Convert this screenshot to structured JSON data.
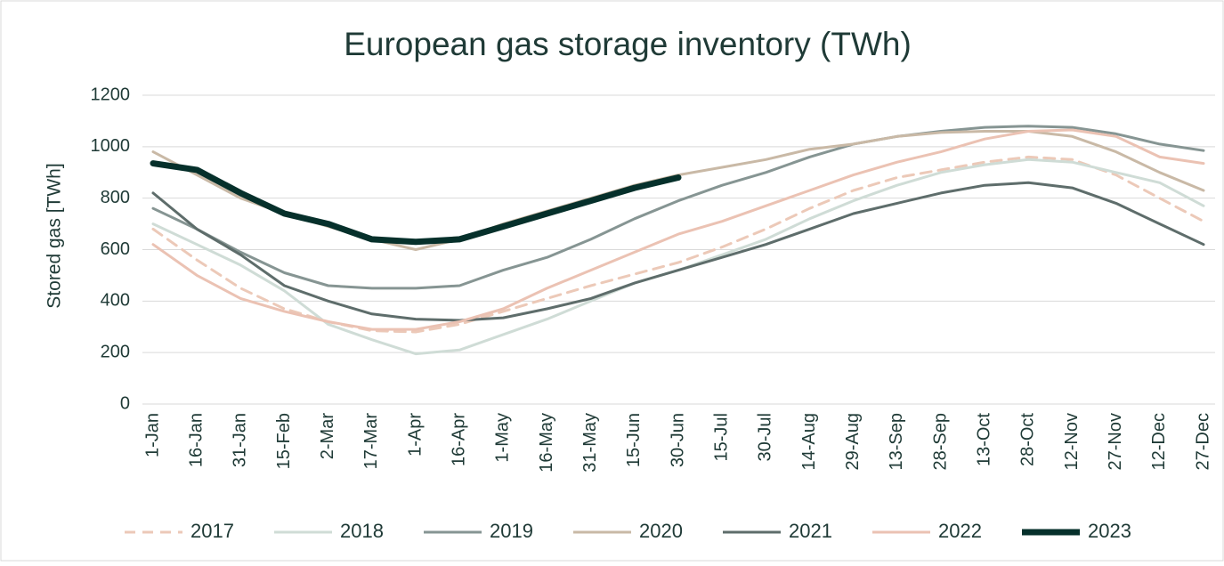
{
  "chart_data": {
    "type": "line",
    "title": "European gas storage inventory (TWh)",
    "y_label": "Stored gas [TWh]",
    "categories": [
      "1-Jan",
      "16-Jan",
      "31-Jan",
      "15-Feb",
      "2-Mar",
      "17-Mar",
      "1-Apr",
      "16-Apr",
      "1-May",
      "16-May",
      "31-May",
      "15-Jun",
      "30-Jun",
      "15-Jul",
      "30-Jul",
      "14-Aug",
      "29-Aug",
      "13-Sep",
      "28-Sep",
      "13-Oct",
      "28-Oct",
      "12-Nov",
      "27-Nov",
      "12-Dec",
      "27-Dec"
    ],
    "series": [
      {
        "name": "2017",
        "color": "#ecc9b8",
        "dashed": true,
        "values": [
          680,
          560,
          450,
          370,
          320,
          285,
          280,
          310,
          360,
          410,
          460,
          505,
          550,
          610,
          680,
          760,
          830,
          880,
          910,
          940,
          960,
          950,
          890,
          800,
          710
        ]
      },
      {
        "name": "2018",
        "color": "#cfdcd6",
        "values": [
          700,
          620,
          540,
          440,
          310,
          250,
          195,
          210,
          270,
          330,
          400,
          470,
          520,
          580,
          640,
          720,
          790,
          850,
          900,
          930,
          950,
          940,
          900,
          860,
          770
        ]
      },
      {
        "name": "2019",
        "color": "#869593",
        "values": [
          760,
          680,
          590,
          510,
          460,
          450,
          450,
          460,
          520,
          570,
          640,
          720,
          790,
          850,
          900,
          960,
          1010,
          1040,
          1060,
          1075,
          1080,
          1075,
          1050,
          1010,
          985
        ]
      },
      {
        "name": "2020",
        "color": "#c9b9a6",
        "values": [
          980,
          890,
          800,
          740,
          690,
          640,
          600,
          640,
          700,
          750,
          800,
          850,
          890,
          920,
          950,
          990,
          1010,
          1040,
          1055,
          1060,
          1060,
          1040,
          980,
          900,
          830
        ]
      },
      {
        "name": "2021",
        "color": "#5e6d6b",
        "values": [
          820,
          680,
          580,
          460,
          400,
          350,
          330,
          325,
          335,
          370,
          410,
          470,
          520,
          570,
          620,
          680,
          740,
          780,
          820,
          850,
          860,
          840,
          780,
          700,
          620
        ]
      },
      {
        "name": "2022",
        "color": "#ebc2b3",
        "values": [
          620,
          500,
          410,
          360,
          320,
          290,
          290,
          320,
          370,
          450,
          520,
          590,
          660,
          710,
          770,
          830,
          890,
          940,
          980,
          1030,
          1060,
          1065,
          1040,
          960,
          935
        ]
      },
      {
        "name": "2023",
        "color": "#06302b",
        "bold": true,
        "values": [
          935,
          910,
          820,
          740,
          700,
          640,
          630,
          640,
          690,
          740,
          790,
          840,
          880,
          null,
          null,
          null,
          null,
          null,
          null,
          null,
          null,
          null,
          null,
          null,
          null
        ]
      }
    ],
    "ylim": [
      0,
      1200
    ],
    "yticks": [
      0,
      200,
      400,
      600,
      800,
      1000,
      1200
    ],
    "grid": true,
    "legend": "bottom"
  }
}
